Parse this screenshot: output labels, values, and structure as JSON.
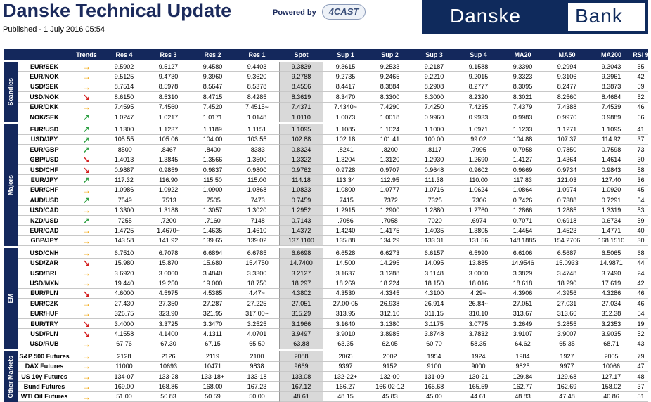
{
  "header": {
    "title": "Danske Technical Update",
    "published": "Published - 1 July 2016 05:54",
    "powered_by": "Powered by",
    "partner_logo": "4CAST",
    "logo_left": "Danske",
    "logo_right": "Bank"
  },
  "table": {
    "columns": [
      "Trends",
      "Res 4",
      "Res 3",
      "Res 2",
      "Res 1",
      "Spot",
      "Sup 1",
      "Sup 2",
      "Sup 3",
      "Sup 4",
      "MA20",
      "MA50",
      "MA200",
      "RSI 9"
    ],
    "groups": [
      {
        "name": "Scandies",
        "rows": [
          [
            "EUR/SEK",
            "→",
            "9.5902",
            "9.5127",
            "9.4580",
            "9.4403",
            "9.3839",
            "9.3615",
            "9.2533",
            "9.2187",
            "9.1588",
            "9.3390",
            "9.2994",
            "9.3043",
            "55"
          ],
          [
            "EUR/NOK",
            "→",
            "9.5125",
            "9.4730",
            "9.3960",
            "9.3620",
            "9.2788",
            "9.2735",
            "9.2465",
            "9.2210",
            "9.2015",
            "9.3323",
            "9.3106",
            "9.3961",
            "42"
          ],
          [
            "USD/SEK",
            "→",
            "8.7514",
            "8.5978",
            "8.5647",
            "8.5378",
            "8.4556",
            "8.4417",
            "8.3884",
            "8.2908",
            "8.2777",
            "8.3095",
            "8.2477",
            "8.3873",
            "59"
          ],
          [
            "USD/NOK",
            "↘",
            "8.6150",
            "8.5310",
            "8.4715",
            "8.4285",
            "8.3619",
            "8.3470",
            "8.3300",
            "8.3000",
            "8.2320",
            "8.3021",
            "8.2560",
            "8.4684",
            "52"
          ],
          [
            "EUR/DKK",
            "→",
            "7.4595",
            "7.4560",
            "7.4520",
            "7.4515~",
            "7.4371",
            "7.4340~",
            "7.4290",
            "7.4250",
            "7.4235",
            "7.4379",
            "7.4388",
            "7.4539",
            "46"
          ],
          [
            "NOK/SEK",
            "↗",
            "1.0247",
            "1.0217",
            "1.0171",
            "1.0148",
            "1.0110",
            "1.0073",
            "1.0018",
            "0.9960",
            "0.9933",
            "0.9983",
            "0.9970",
            "0.9889",
            "66"
          ]
        ]
      },
      {
        "name": "Majors",
        "rows": [
          [
            "EUR/USD",
            "↗",
            "1.1300",
            "1.1237",
            "1.1189",
            "1.1151",
            "1.1095",
            "1.1085",
            "1.1024",
            "1.1000",
            "1.0971",
            "1.1233",
            "1.1271",
            "1.1095",
            "41"
          ],
          [
            "USD/JPY",
            "↗",
            "105.55",
            "105.06",
            "104.00",
            "103.55",
            "102.88",
            "102.18",
            "101.41",
            "100.00",
            "99.02",
            "104.88",
            "107.37",
            "114.92",
            "37"
          ],
          [
            "EUR/GBP",
            "↗",
            ".8500",
            ".8467",
            ".8400",
            ".8383",
            "0.8324",
            ".8241",
            ".8200",
            ".8117",
            ".7995",
            "0.7958",
            "0.7850",
            "0.7598",
            "73"
          ],
          [
            "GBP/USD",
            "↘",
            "1.4013",
            "1.3845",
            "1.3566",
            "1.3500",
            "1.3322",
            "1.3204",
            "1.3120",
            "1.2930",
            "1.2690",
            "1.4127",
            "1.4364",
            "1.4614",
            "30"
          ],
          [
            "USD/CHF",
            "↘",
            "0.9887",
            "0.9859",
            "0.9837",
            "0.9800",
            "0.9762",
            "0.9728",
            "0.9707",
            "0.9648",
            "0.9602",
            "0.9669",
            "0.9734",
            "0.9843",
            "58"
          ],
          [
            "EUR/JPY",
            "↗",
            "117.32",
            "116.90",
            "115.50",
            "115.00",
            "114.18",
            "113.34",
            "112.95",
            "111.38",
            "110.00",
            "117.83",
            "121.03",
            "127.40",
            "36"
          ],
          [
            "EUR/CHF",
            "→",
            "1.0986",
            "1.0922",
            "1.0900",
            "1.0868",
            "1.0833",
            "1.0800",
            "1.0777",
            "1.0716",
            "1.0624",
            "1.0864",
            "1.0974",
            "1.0920",
            "45"
          ],
          [
            "AUD/USD",
            "↗",
            ".7549",
            ".7513",
            ".7505",
            ".7473",
            "0.7459",
            ".7415",
            ".7372",
            ".7325",
            ".7306",
            "0.7426",
            "0.7388",
            "0.7291",
            "54"
          ],
          [
            "USD/CAD",
            "→",
            "1.3300",
            "1.3188",
            "1.3057",
            "1.3020",
            "1.2952",
            "1.2915",
            "1.2900",
            "1.2880",
            "1.2760",
            "1.2866",
            "1.2885",
            "1.3319",
            "53"
          ],
          [
            "NZD/USD",
            "↗",
            ".7255",
            ".7200",
            ".7160",
            ".7148",
            "0.7143",
            ".7086",
            ".7058",
            ".7020",
            ".6974",
            "0.7071",
            "0.6918",
            "0.6734",
            "59"
          ],
          [
            "EUR/CAD",
            "→",
            "1.4725",
            "1.4670~",
            "1.4635",
            "1.4610",
            "1.4372",
            "1.4240",
            "1.4175",
            "1.4035",
            "1.3805",
            "1.4454",
            "1.4523",
            "1.4771",
            "40"
          ],
          [
            "GBP/JPY",
            "→",
            "143.58",
            "141.92",
            "139.65",
            "139.02",
            "137.1100",
            "135.88",
            "134.29",
            "133.31",
            "131.56",
            "148.1885",
            "154.2706",
            "168.1510",
            "30"
          ]
        ]
      },
      {
        "name": "EM",
        "rows": [
          [
            "USD/CNH",
            "→",
            "6.7510",
            "6.7078",
            "6.6894",
            "6.6785",
            "6.6698",
            "6.6528",
            "6.6273",
            "6.6157",
            "6.5990",
            "6.6106",
            "6.5687",
            "6.5065",
            "68"
          ],
          [
            "USD/ZAR",
            "↘",
            "15.980",
            "15.870",
            "15.680",
            "15.4750",
            "14.7400",
            "14.500",
            "14.295",
            "14.095",
            "13.885",
            "14.9546",
            "15.0933",
            "14.9871",
            "44"
          ],
          [
            "USD/BRL",
            "→",
            "3.6920",
            "3.6060",
            "3.4840",
            "3.3300",
            "3.2127",
            "3.1637",
            "3.1288",
            "3.1148",
            "3.0000",
            "3.3829",
            "3.4748",
            "3.7490",
            "24"
          ],
          [
            "USD/MXN",
            "→",
            "19.440",
            "19.250",
            "19.000",
            "18.750",
            "18.297",
            "18.269",
            "18.224",
            "18.150",
            "18.016",
            "18.618",
            "18.290",
            "17.619",
            "42"
          ],
          [
            "EUR/PLN",
            "↘",
            "4.6000",
            "4.5975",
            "4.5385",
            "4.47~",
            "4.3802",
            "4.3530",
            "4.3345",
            "4.3100",
            "4.29~",
            "4.3906",
            "4.3956",
            "4.3286",
            "46"
          ],
          [
            "EUR/CZK",
            "→",
            "27.430",
            "27.350",
            "27.287",
            "27.225",
            "27.051",
            "27.00-05",
            "26.938",
            "26.914",
            "26.84~",
            "27.051",
            "27.031",
            "27.034",
            "46"
          ],
          [
            "EUR/HUF",
            "→",
            "326.75",
            "323.90",
            "321.95",
            "317.00~",
            "315.29",
            "313.95",
            "312.10",
            "311.15",
            "310.10",
            "313.67",
            "313.66",
            "312.38",
            "54"
          ],
          [
            "EUR/TRY",
            "↘",
            "3.4000",
            "3.3725",
            "3.3470",
            "3.2525",
            "3.1966",
            "3.1640",
            "3.1380",
            "3.1175",
            "3.0775",
            "3.2649",
            "3.2855",
            "3.2353",
            "19"
          ],
          [
            "USD/PLN",
            "↘",
            "4.1558",
            "4.1400",
            "4.1311",
            "4.0701",
            "3.9497",
            "3.9010",
            "3.8985",
            "3.8748",
            "3.7832",
            "3.9107",
            "3.9007",
            "3.9035",
            "52"
          ],
          [
            "USD/RUB",
            "→",
            "67.76",
            "67.30",
            "67.15",
            "65.50",
            "63.88",
            "63.35",
            "62.05",
            "60.70",
            "58.35",
            "64.62",
            "65.35",
            "68.71",
            "43"
          ]
        ]
      },
      {
        "name": "Other Markets",
        "rows": [
          [
            "S&P 500 Futures",
            "→",
            "2128",
            "2126",
            "2119",
            "2100",
            "2088",
            "2065",
            "2002",
            "1954",
            "1924",
            "1984",
            "1927",
            "2005",
            "79"
          ],
          [
            "DAX Futures",
            "→",
            "11000",
            "10693",
            "10471",
            "9838",
            "9669",
            "9397",
            "9152",
            "9100",
            "9000",
            "9825",
            "9977",
            "10066",
            "47"
          ],
          [
            "US 10y Futures",
            "→",
            "134-07",
            "133-28",
            "133-18+",
            "133-18",
            "133.08",
            "132-22+",
            "132-00",
            "131-09",
            "130-21",
            "129.84",
            "129.68",
            "127.17",
            "48"
          ],
          [
            "Bund Futures",
            "→",
            "169.00",
            "168.86",
            "168.00",
            "167.23",
            "167.12",
            "166.27",
            "166.02-12",
            "165.68",
            "165.59",
            "162.77",
            "162.69",
            "158.02",
            "37"
          ],
          [
            "WTI Oil Futures",
            "→",
            "51.00",
            "50.83",
            "50.59",
            "50.00",
            "48.61",
            "48.15",
            "45.83",
            "45.00",
            "44.61",
            "48.83",
            "47.48",
            "40.86",
            "51"
          ]
        ]
      }
    ]
  }
}
